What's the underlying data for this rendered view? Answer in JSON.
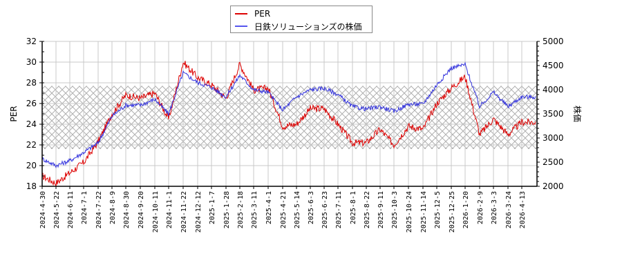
{
  "chart_data": {
    "type": "line",
    "title": "",
    "xlabel": "",
    "ylabel": "PER",
    "ylabel_right": "株価",
    "ylim": [
      18,
      32
    ],
    "ylim_right": [
      2000,
      5000
    ],
    "yticks": [
      "18",
      "20",
      "22",
      "24",
      "26",
      "28",
      "30",
      "32"
    ],
    "yticks_right": [
      "2000",
      "2500",
      "3000",
      "3500",
      "4000",
      "4500",
      "5000"
    ],
    "x_tick_labels": [
      "2024-4-30",
      "2024-5-22",
      "2024-6-11",
      "2024-7-1",
      "2024-7-22",
      "2024-8-9",
      "2024-8-30",
      "2024-9-20",
      "2024-10-11",
      "2024-11-1",
      "2024-11-22",
      "2024-12-12",
      "2025-1-7",
      "2025-1-28",
      "2025-2-18",
      "2025-3-11",
      "2025-4-1",
      "2025-4-21",
      "2025-5-14",
      "2025-6-3",
      "2025-6-23",
      "2025-7-11",
      "2025-8-1",
      "2025-8-22",
      "2025-9-11",
      "2025-10-3",
      "2025-10-24",
      "2025-11-14",
      "2025-12-5",
      "2025-12-25",
      "2026-1-20",
      "2026-2-9",
      "2026-3-3",
      "2026-3-24",
      "2026-4-13"
    ],
    "grid": true,
    "legend_position": "top-center",
    "band": {
      "from": 21.6,
      "to": 27.7,
      "style": "cross-hatch",
      "color": "#b0b0b0"
    },
    "series": [
      {
        "name": "PER",
        "color": "#dd0000",
        "axis": "left",
        "x": [
          "2024-4-30",
          "2024-5-22",
          "2024-6-11",
          "2024-7-1",
          "2024-7-22",
          "2024-8-9",
          "2024-8-30",
          "2024-9-20",
          "2024-10-11",
          "2024-11-1",
          "2024-11-22",
          "2024-12-12",
          "2025-1-7",
          "2025-1-28",
          "2025-2-18",
          "2025-3-11",
          "2025-4-1",
          "2025-4-21",
          "2025-5-14",
          "2025-6-3",
          "2025-6-23",
          "2025-7-11",
          "2025-8-1",
          "2025-8-22",
          "2025-9-11",
          "2025-10-3",
          "2025-10-24",
          "2025-11-14",
          "2025-12-5",
          "2025-12-25",
          "2026-1-20",
          "2026-2-9",
          "2026-3-3",
          "2026-3-24",
          "2026-4-13"
        ],
        "values": [
          19.0,
          18.3,
          19.3,
          20.3,
          22.3,
          25.0,
          26.8,
          26.5,
          27.0,
          24.5,
          30.0,
          28.5,
          27.8,
          26.5,
          29.8,
          27.3,
          27.5,
          23.8,
          24.0,
          25.5,
          25.5,
          24.0,
          22.2,
          22.2,
          23.5,
          22.0,
          23.8,
          23.5,
          26.0,
          27.5,
          28.6,
          23.0,
          24.5,
          23.0,
          24.2
        ]
      },
      {
        "name": "日鉄ソリューションズの株価",
        "color": "#3333dd",
        "axis": "right",
        "x": [
          "2024-4-30",
          "2024-5-22",
          "2024-6-11",
          "2024-7-1",
          "2024-7-22",
          "2024-8-9",
          "2024-8-30",
          "2024-9-20",
          "2024-10-11",
          "2024-11-1",
          "2024-11-22",
          "2024-12-12",
          "2025-1-7",
          "2025-1-28",
          "2025-2-18",
          "2025-3-11",
          "2025-4-1",
          "2025-4-21",
          "2025-5-14",
          "2025-6-3",
          "2025-6-23",
          "2025-7-11",
          "2025-8-1",
          "2025-8-22",
          "2025-9-11",
          "2025-10-3",
          "2025-10-24",
          "2025-11-14",
          "2025-12-5",
          "2025-12-25",
          "2026-1-20",
          "2026-2-9",
          "2026-3-3",
          "2026-3-24",
          "2026-4-13"
        ],
        "values": [
          2570,
          2430,
          2530,
          2700,
          2900,
          3450,
          3680,
          3680,
          3800,
          3500,
          4350,
          4150,
          4050,
          3850,
          4300,
          4000,
          3950,
          3580,
          3850,
          4000,
          4030,
          3900,
          3650,
          3600,
          3650,
          3550,
          3700,
          3700,
          4100,
          4450,
          4520,
          3650,
          3950,
          3650,
          3850
        ]
      }
    ]
  },
  "legend": {
    "items": [
      {
        "label": "PER",
        "color": "#dd0000"
      },
      {
        "label": "日鉄ソリューションズの株価",
        "color": "#5555ee"
      }
    ]
  }
}
